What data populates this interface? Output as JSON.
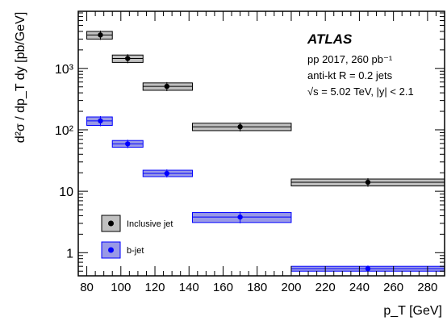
{
  "chart_data": {
    "type": "scatter",
    "xlabel": "p_T [GeV]",
    "ylabel": "d²σ / dp_T dy [pb/GeV]",
    "xscale": "linear",
    "yscale": "log",
    "xlim": [
      75,
      290
    ],
    "ylim": [
      0.42,
      8500
    ],
    "grid": false,
    "xticks": [
      80,
      100,
      120,
      140,
      160,
      180,
      200,
      220,
      240,
      260,
      280
    ],
    "xtick_labels": [
      "80",
      "100",
      "120",
      "140",
      "160",
      "180",
      "200",
      "220",
      "240",
      "260",
      "280"
    ],
    "yticks": [
      1,
      10,
      100,
      1000
    ],
    "ytick_labels": [
      "1",
      "10",
      "10²",
      "10³"
    ],
    "annotation": {
      "experiment": "ATLAS",
      "line1": "pp 2017, 260 pb⁻¹",
      "line2": "anti-kt R = 0.2 jets",
      "line3": "√s = 5.02 TeV, |y| < 2.1"
    },
    "legend_position": "bottom-left",
    "series": [
      {
        "name": "Inclusive jet",
        "color": "#000000",
        "fill": "#c0c0c0",
        "points": [
          {
            "x": 88,
            "xlo": 80,
            "xhi": 95,
            "y": 3500,
            "ylo": 3000,
            "yhi": 4000
          },
          {
            "x": 104,
            "xlo": 95,
            "xhi": 113,
            "y": 1450,
            "ylo": 1250,
            "yhi": 1650
          },
          {
            "x": 127,
            "xlo": 113,
            "xhi": 142,
            "y": 510,
            "ylo": 440,
            "yhi": 580
          },
          {
            "x": 170,
            "xlo": 142,
            "xhi": 200,
            "y": 112,
            "ylo": 97,
            "yhi": 128
          },
          {
            "x": 245,
            "xlo": 200,
            "xhi": 290,
            "y": 14,
            "ylo": 12.2,
            "yhi": 15.8
          }
        ]
      },
      {
        "name": "b-jet",
        "color": "#0000ff",
        "fill": "#9999e6",
        "points": [
          {
            "x": 88,
            "xlo": 80,
            "xhi": 95,
            "y": 140,
            "ylo": 118,
            "yhi": 162
          },
          {
            "x": 104,
            "xlo": 95,
            "xhi": 113,
            "y": 59,
            "ylo": 52,
            "yhi": 67
          },
          {
            "x": 127,
            "xlo": 113,
            "xhi": 142,
            "y": 19.5,
            "ylo": 17.3,
            "yhi": 22
          },
          {
            "x": 170,
            "xlo": 142,
            "xhi": 200,
            "y": 3.8,
            "ylo": 3.1,
            "yhi": 4.5
          },
          {
            "x": 245,
            "xlo": 200,
            "xhi": 290,
            "y": 0.55,
            "ylo": 0.5,
            "yhi": 0.6
          }
        ]
      }
    ]
  }
}
